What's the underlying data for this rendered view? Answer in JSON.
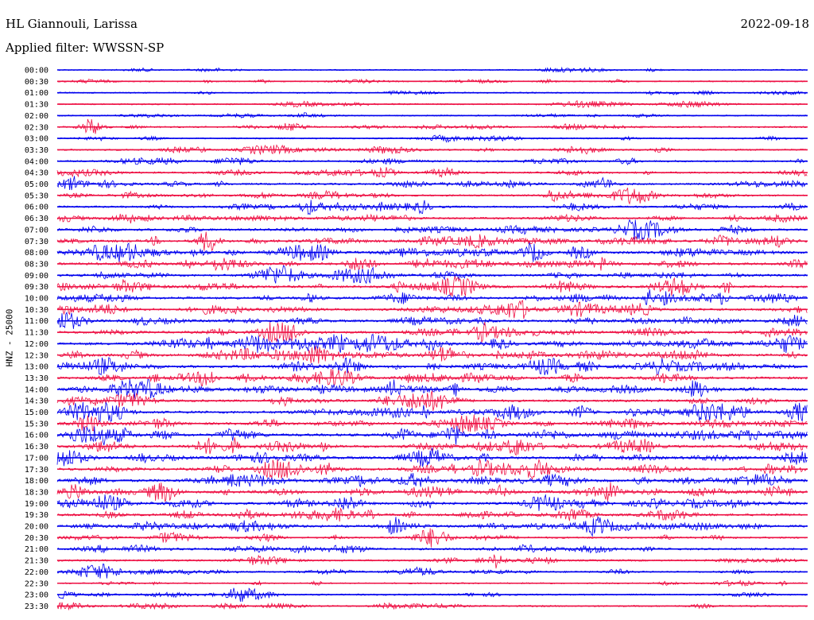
{
  "header": {
    "station": "HL Giannouli, Larissa",
    "filter": "Applied filter: WWSSN-SP",
    "date": "2022-09-18"
  },
  "colors": {
    "trace_a": "#0000ee",
    "trace_b": "#ee1144"
  },
  "chart_data": {
    "type": "line",
    "title": "HL Giannouli, Larissa",
    "ylabel": "HNZ - 25000",
    "date": "2022-09-18",
    "filter": "WWSSN-SP",
    "rows": [
      "00:00",
      "00:30",
      "01:00",
      "01:30",
      "02:00",
      "02:30",
      "03:00",
      "03:30",
      "04:00",
      "04:30",
      "05:00",
      "05:30",
      "06:00",
      "06:30",
      "07:00",
      "07:30",
      "08:00",
      "08:30",
      "09:00",
      "09:30",
      "10:00",
      "10:30",
      "11:00",
      "11:30",
      "12:00",
      "12:30",
      "13:00",
      "13:30",
      "14:00",
      "14:30",
      "15:00",
      "15:30",
      "16:00",
      "16:30",
      "17:00",
      "17:30",
      "18:00",
      "18:30",
      "19:00",
      "19:30",
      "20:00",
      "20:30",
      "21:00",
      "21:30",
      "22:00",
      "22:30",
      "23:00",
      "23:30"
    ],
    "row_activity": [
      0.1,
      0.15,
      0.15,
      0.2,
      0.15,
      0.3,
      0.2,
      0.35,
      0.4,
      0.4,
      0.45,
      0.4,
      0.5,
      0.5,
      0.6,
      0.7,
      0.8,
      0.7,
      0.6,
      0.7,
      0.7,
      0.7,
      0.7,
      0.7,
      0.9,
      0.8,
      0.75,
      0.7,
      0.7,
      0.65,
      0.75,
      0.7,
      0.8,
      0.75,
      0.8,
      0.8,
      0.8,
      0.75,
      0.7,
      0.65,
      0.65,
      0.4,
      0.5,
      0.4,
      0.35,
      0.2,
      0.25,
      0.3
    ],
    "series_colors_alternate": [
      "blue",
      "red"
    ]
  }
}
